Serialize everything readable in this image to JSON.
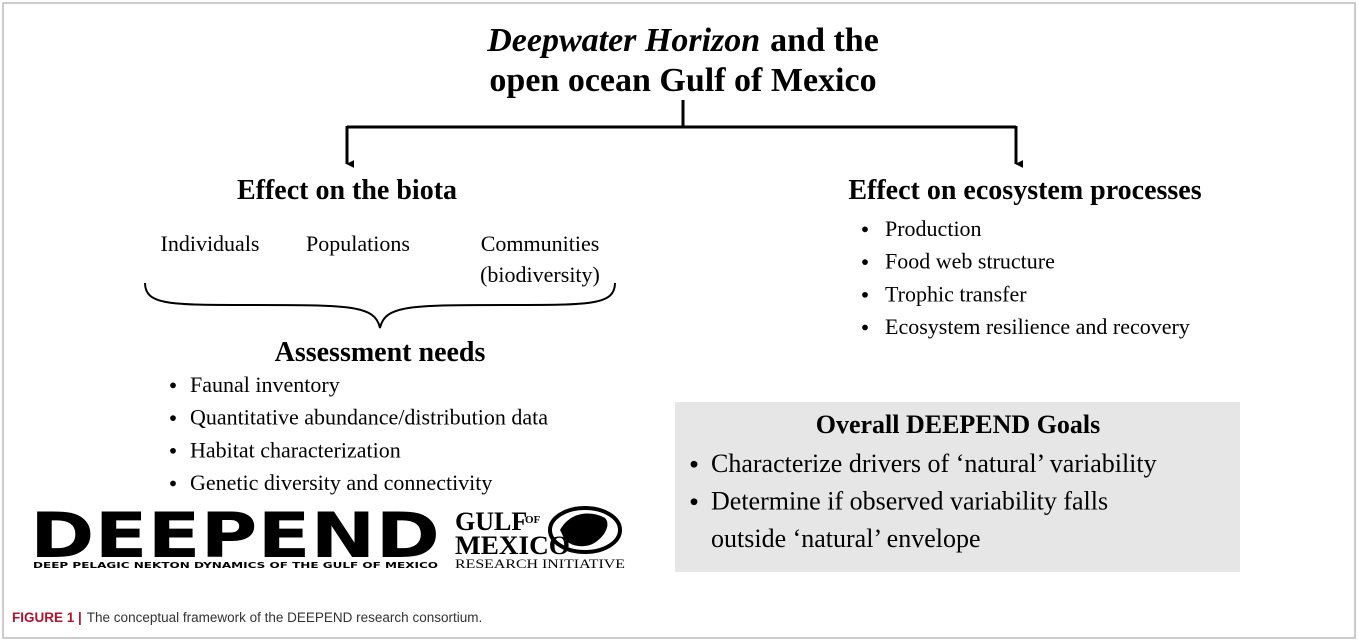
{
  "title": {
    "italic": "Deepwater Horizon",
    "line1_rest": "and the",
    "line2": "open ocean Gulf of Mexico"
  },
  "left": {
    "heading": "Effect on the biota",
    "levels": [
      "Individuals",
      "Populations",
      "Communities",
      "(biodiversity)"
    ],
    "assessment": {
      "heading": "Assessment needs",
      "items": [
        "Faunal inventory",
        "Quantitative abundance/distribution data",
        "Habitat characterization",
        "Genetic diversity and connectivity"
      ]
    }
  },
  "right": {
    "heading": "Effect on ecosystem processes",
    "items": [
      "Production",
      "Food web structure",
      "Trophic transfer",
      "Ecosystem resilience and recovery"
    ]
  },
  "goals": {
    "heading": "Overall DEEPEND Goals",
    "items": [
      "Characterize drivers of ‘natural’ variability",
      "Determine if observed variability falls",
      "outside ‘natural’ envelope"
    ]
  },
  "logos": {
    "deepend": "DEEPEND",
    "deepend_sub": "DEEP PELAGIC NEKTON DYNAMICS OF THE GULF OF MEXICO",
    "gulf": "GULF",
    "of": "OF",
    "mexico": "MEXICO",
    "initiative": "RESEARCH INITIATIVE"
  },
  "caption": {
    "label": "FIGURE 1 |",
    "text": "The conceptual framework of the DEEPEND research consortium."
  }
}
